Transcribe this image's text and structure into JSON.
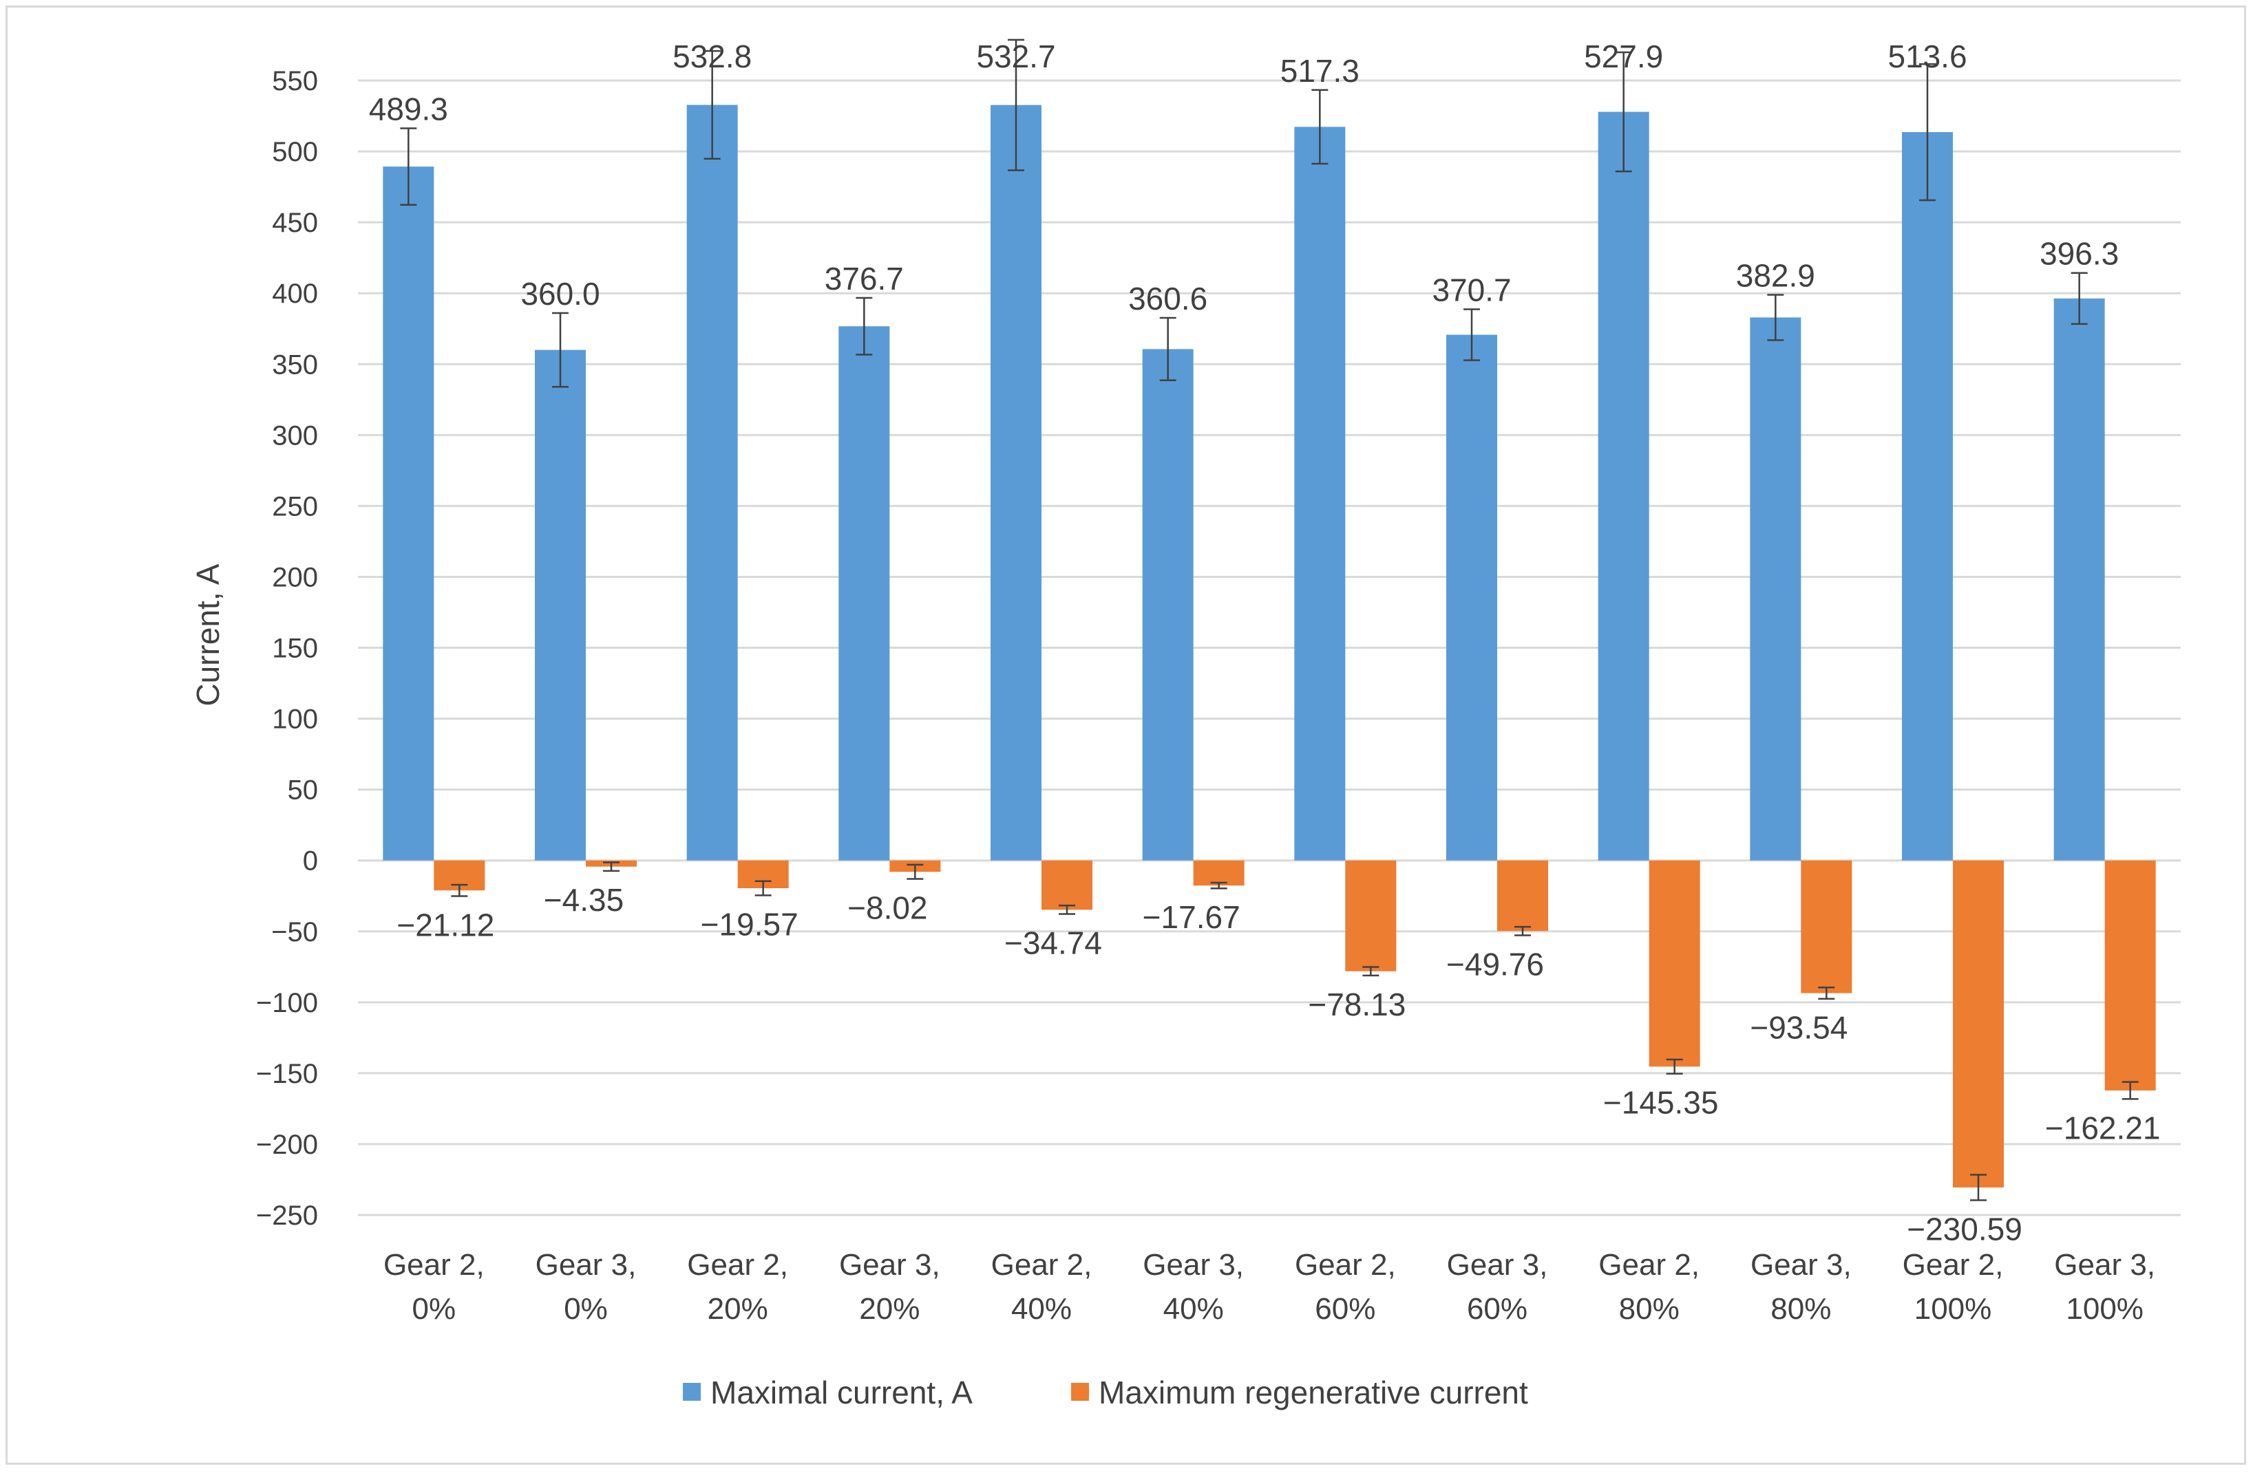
{
  "chart_data": {
    "type": "bar",
    "title": "",
    "xlabel": "",
    "ylabel": "Current, A",
    "ylim": [
      -250,
      550
    ],
    "yticks": [
      550,
      500,
      450,
      400,
      350,
      300,
      250,
      200,
      150,
      100,
      50,
      0,
      -50,
      -100,
      -150,
      -200,
      -250
    ],
    "ytick_labels": [
      "550",
      "500",
      "450",
      "400",
      "350",
      "300",
      "250",
      "200",
      "150",
      "100",
      "50",
      "0",
      "−50",
      "−100",
      "−150",
      "−200",
      "−250"
    ],
    "grid": true,
    "legend_position": "bottom",
    "categories": [
      [
        "Gear 2,",
        "0%"
      ],
      [
        "Gear 3,",
        "0%"
      ],
      [
        "Gear 2,",
        "20%"
      ],
      [
        "Gear 3,",
        "20%"
      ],
      [
        "Gear 2,",
        "40%"
      ],
      [
        "Gear 3,",
        "40%"
      ],
      [
        "Gear 2,",
        "60%"
      ],
      [
        "Gear 3,",
        "60%"
      ],
      [
        "Gear 2,",
        "80%"
      ],
      [
        "Gear 3,",
        "80%"
      ],
      [
        "Gear 2,",
        "100%"
      ],
      [
        "Gear 3,",
        "100%"
      ]
    ],
    "series": [
      {
        "name": "Maximal current, A",
        "color": "#5b9bd5",
        "values": [
          489.3,
          360.0,
          532.8,
          376.7,
          532.7,
          360.6,
          517.3,
          370.7,
          527.9,
          382.9,
          513.6,
          396.3
        ],
        "labels": [
          "489.3",
          "360.0",
          "532.8",
          "376.7",
          "532.7",
          "360.6",
          "517.3",
          "370.7",
          "527.9",
          "382.9",
          "513.6",
          "396.3"
        ],
        "error": [
          27,
          26,
          38,
          20,
          46,
          22,
          26,
          18,
          42,
          16,
          48,
          18
        ]
      },
      {
        "name": "Maximum regenerative current",
        "color": "#ed7d31",
        "values": [
          -21.12,
          -4.35,
          -19.57,
          -8.02,
          -34.74,
          -17.67,
          -78.13,
          -49.76,
          -145.35,
          -93.54,
          -230.59,
          -162.21
        ],
        "labels": [
          "−21.12",
          "−4.35",
          "−19.57",
          "−8.02",
          "−34.74",
          "−17.67",
          "−78.13",
          "−49.76",
          "−145.35",
          "−93.54",
          "−230.59",
          "−162.21"
        ],
        "error": [
          4,
          3,
          5,
          5,
          3,
          2,
          3,
          3,
          5,
          4,
          9,
          6
        ]
      }
    ]
  }
}
